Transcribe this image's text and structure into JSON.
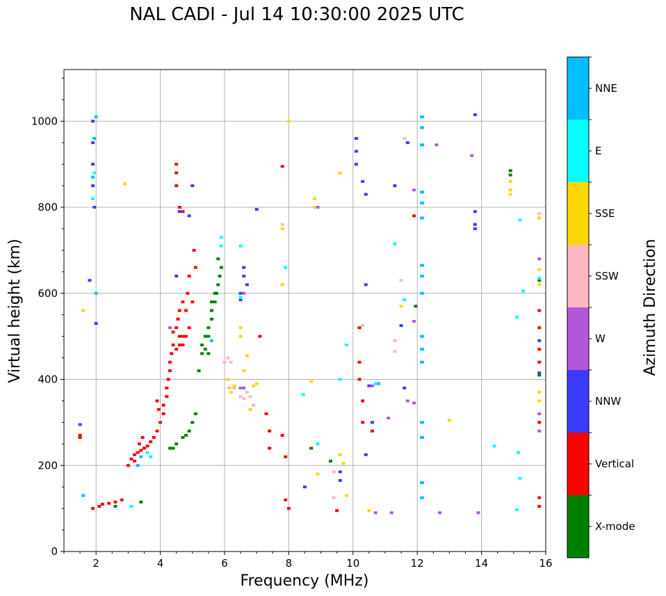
{
  "chart_data": {
    "type": "scatter",
    "title": "NAL CADI - Jul 14 10:30:00 2025 UTC",
    "xlabel": "Frequency (MHz)",
    "ylabel": "Virtual height (km)",
    "xlim": [
      1,
      16
    ],
    "ylim": [
      0,
      1120
    ],
    "xticks": [
      2,
      4,
      6,
      8,
      10,
      12,
      14,
      16
    ],
    "yticks": [
      0,
      200,
      400,
      600,
      800,
      1000
    ],
    "grid": true,
    "colorbar": {
      "label": "Azimuth Direction",
      "categories": [
        {
          "name": "X-mode",
          "color": "#008000"
        },
        {
          "name": "Vertical",
          "color": "#ff0000"
        },
        {
          "name": "NNW",
          "color": "#3b3bff"
        },
        {
          "name": "W",
          "color": "#b158d6"
        },
        {
          "name": "SSW",
          "color": "#ffb6c1"
        },
        {
          "name": "SSE",
          "color": "#ffd700"
        },
        {
          "name": "E",
          "color": "#00ffff"
        },
        {
          "name": "NNE",
          "color": "#00bfff"
        }
      ]
    },
    "series": [
      {
        "name": "Vertical",
        "points": [
          [
            1.5,
            265
          ],
          [
            1.5,
            270
          ],
          [
            1.9,
            100
          ],
          [
            2.1,
            105
          ],
          [
            2.2,
            110
          ],
          [
            2.4,
            112
          ],
          [
            2.6,
            115
          ],
          [
            2.8,
            120
          ],
          [
            3.0,
            200
          ],
          [
            3.1,
            215
          ],
          [
            3.2,
            225
          ],
          [
            3.3,
            230
          ],
          [
            3.4,
            235
          ],
          [
            3.5,
            240
          ],
          [
            3.6,
            245
          ],
          [
            3.7,
            255
          ],
          [
            3.8,
            265
          ],
          [
            3.9,
            280
          ],
          [
            4.0,
            300
          ],
          [
            4.1,
            320
          ],
          [
            4.1,
            340
          ],
          [
            4.2,
            360
          ],
          [
            4.2,
            380
          ],
          [
            4.25,
            400
          ],
          [
            4.3,
            420
          ],
          [
            4.3,
            440
          ],
          [
            4.35,
            460
          ],
          [
            4.4,
            480
          ],
          [
            4.4,
            510
          ],
          [
            4.5,
            470
          ],
          [
            4.5,
            520
          ],
          [
            4.55,
            540
          ],
          [
            4.6,
            480
          ],
          [
            4.6,
            500
          ],
          [
            4.6,
            560
          ],
          [
            4.7,
            480
          ],
          [
            4.7,
            500
          ],
          [
            4.7,
            580
          ],
          [
            4.8,
            500
          ],
          [
            4.8,
            560
          ],
          [
            4.85,
            600
          ],
          [
            4.9,
            520
          ],
          [
            4.9,
            640
          ],
          [
            5.0,
            580
          ],
          [
            5.05,
            700
          ],
          [
            5.1,
            660
          ],
          [
            4.5,
            850
          ],
          [
            4.5,
            880
          ],
          [
            4.5,
            900
          ],
          [
            4.6,
            800
          ],
          [
            4.7,
            790
          ],
          [
            3.9,
            350
          ],
          [
            3.95,
            330
          ],
          [
            3.35,
            250
          ],
          [
            3.45,
            265
          ],
          [
            3.2,
            210
          ],
          [
            7.1,
            500
          ],
          [
            7.3,
            320
          ],
          [
            7.4,
            280
          ],
          [
            7.4,
            240
          ],
          [
            7.8,
            270
          ],
          [
            7.9,
            220
          ],
          [
            7.9,
            120
          ],
          [
            8.0,
            100
          ],
          [
            9.5,
            95
          ],
          [
            10.2,
            520
          ],
          [
            10.2,
            440
          ],
          [
            10.2,
            400
          ],
          [
            10.3,
            350
          ],
          [
            10.3,
            300
          ],
          [
            10.6,
            280
          ],
          [
            15.8,
            560
          ],
          [
            15.8,
            520
          ],
          [
            15.8,
            470
          ],
          [
            15.8,
            440
          ],
          [
            15.8,
            300
          ],
          [
            15.8,
            125
          ],
          [
            15.8,
            105
          ],
          [
            7.8,
            895
          ],
          [
            11.9,
            780
          ]
        ]
      },
      {
        "name": "X-mode",
        "points": [
          [
            5.2,
            420
          ],
          [
            5.3,
            460
          ],
          [
            5.3,
            480
          ],
          [
            5.4,
            500
          ],
          [
            5.5,
            520
          ],
          [
            5.6,
            540
          ],
          [
            5.6,
            560
          ],
          [
            5.7,
            580
          ],
          [
            5.75,
            600
          ],
          [
            5.8,
            620
          ],
          [
            5.85,
            640
          ],
          [
            5.9,
            660
          ],
          [
            5.8,
            680
          ],
          [
            5.1,
            320
          ],
          [
            5.0,
            300
          ],
          [
            4.9,
            280
          ],
          [
            4.8,
            270
          ],
          [
            4.7,
            265
          ],
          [
            4.5,
            250
          ],
          [
            4.4,
            240
          ],
          [
            4.3,
            240
          ],
          [
            5.5,
            460
          ],
          [
            5.5,
            500
          ],
          [
            5.4,
            470
          ],
          [
            5.6,
            580
          ],
          [
            5.7,
            600
          ],
          [
            8.7,
            240
          ],
          [
            9.3,
            210
          ],
          [
            2.6,
            105
          ],
          [
            3.4,
            115
          ],
          [
            11.95,
            570
          ],
          [
            15.8,
            630
          ],
          [
            15.8,
            410
          ],
          [
            14.9,
            885
          ],
          [
            14.9,
            875
          ]
        ]
      },
      {
        "name": "NNW",
        "points": [
          [
            1.5,
            295
          ],
          [
            1.9,
            900
          ],
          [
            1.9,
            950
          ],
          [
            1.9,
            1000
          ],
          [
            1.9,
            850
          ],
          [
            1.95,
            800
          ],
          [
            1.8,
            630
          ],
          [
            4.5,
            640
          ],
          [
            4.6,
            790
          ],
          [
            4.9,
            780
          ],
          [
            5.0,
            850
          ],
          [
            6.5,
            600
          ],
          [
            6.5,
            585
          ],
          [
            6.7,
            620
          ],
          [
            6.6,
            640
          ],
          [
            6.6,
            660
          ],
          [
            10.1,
            960
          ],
          [
            10.1,
            930
          ],
          [
            10.1,
            900
          ],
          [
            10.3,
            860
          ],
          [
            10.4,
            830
          ],
          [
            10.4,
            620
          ],
          [
            10.5,
            385
          ],
          [
            10.6,
            300
          ],
          [
            9.6,
            185
          ],
          [
            9.6,
            165
          ],
          [
            10.4,
            225
          ],
          [
            11.6,
            380
          ],
          [
            11.5,
            525
          ],
          [
            11.7,
            950
          ],
          [
            11.3,
            850
          ],
          [
            13.8,
            1015
          ],
          [
            13.8,
            790
          ],
          [
            13.8,
            760
          ],
          [
            13.8,
            750
          ],
          [
            15.8,
            490
          ],
          [
            15.8,
            415
          ],
          [
            8.5,
            150
          ],
          [
            7.0,
            795
          ],
          [
            2.0,
            530
          ]
        ]
      },
      {
        "name": "W",
        "points": [
          [
            8.9,
            800
          ],
          [
            13.7,
            920
          ],
          [
            12.6,
            945
          ],
          [
            11.9,
            840
          ],
          [
            11.9,
            535
          ],
          [
            11.7,
            350
          ],
          [
            11.9,
            345
          ],
          [
            11.1,
            310
          ],
          [
            10.7,
            90
          ],
          [
            11.2,
            90
          ],
          [
            12.7,
            90
          ],
          [
            13.9,
            90
          ],
          [
            6.6,
            600
          ],
          [
            6.5,
            380
          ],
          [
            6.6,
            380
          ],
          [
            15.8,
            680
          ],
          [
            15.8,
            320
          ],
          [
            15.8,
            280
          ],
          [
            10.6,
            385
          ],
          [
            4.3,
            520
          ]
        ]
      },
      {
        "name": "SSW",
        "points": [
          [
            6.0,
            440
          ],
          [
            6.1,
            450
          ],
          [
            6.2,
            440
          ],
          [
            6.3,
            380
          ],
          [
            6.5,
            360
          ],
          [
            6.6,
            355
          ],
          [
            6.7,
            370
          ],
          [
            6.8,
            360
          ],
          [
            6.9,
            340
          ],
          [
            10.3,
            525
          ],
          [
            11.3,
            490
          ],
          [
            11.3,
            465
          ],
          [
            11.5,
            630
          ],
          [
            11.6,
            960
          ],
          [
            9.4,
            185
          ],
          [
            9.4,
            125
          ],
          [
            15.8,
            785
          ],
          [
            7.8,
            760
          ]
        ]
      },
      {
        "name": "SSE",
        "points": [
          [
            6.1,
            400
          ],
          [
            6.15,
            380
          ],
          [
            6.2,
            370
          ],
          [
            6.3,
            385
          ],
          [
            6.5,
            500
          ],
          [
            6.5,
            520
          ],
          [
            6.6,
            420
          ],
          [
            6.7,
            455
          ],
          [
            6.8,
            330
          ],
          [
            6.9,
            385
          ],
          [
            7.0,
            390
          ],
          [
            8.8,
            820
          ],
          [
            8.8,
            800
          ],
          [
            8.9,
            180
          ],
          [
            9.6,
            225
          ],
          [
            9.7,
            205
          ],
          [
            9.8,
            130
          ],
          [
            10.5,
            95
          ],
          [
            11.5,
            570
          ],
          [
            11.3,
            715
          ],
          [
            13.0,
            305
          ],
          [
            14.9,
            860
          ],
          [
            14.9,
            840
          ],
          [
            14.9,
            830
          ],
          [
            15.8,
            775
          ],
          [
            15.8,
            655
          ],
          [
            15.8,
            620
          ],
          [
            15.8,
            370
          ],
          [
            15.8,
            350
          ],
          [
            1.6,
            560
          ],
          [
            2.9,
            855
          ],
          [
            7.8,
            620
          ],
          [
            7.8,
            750
          ],
          [
            8.0,
            1000
          ],
          [
            9.6,
            880
          ],
          [
            8.7,
            395
          ]
        ]
      },
      {
        "name": "E",
        "points": [
          [
            1.95,
            880
          ],
          [
            1.9,
            820
          ],
          [
            3.6,
            230
          ],
          [
            3.7,
            220
          ],
          [
            5.9,
            730
          ],
          [
            5.9,
            710
          ],
          [
            6.5,
            710
          ],
          [
            6.5,
            590
          ],
          [
            8.9,
            250
          ],
          [
            9.6,
            400
          ],
          [
            9.8,
            480
          ],
          [
            11.3,
            715
          ],
          [
            11.6,
            585
          ],
          [
            14.4,
            245
          ],
          [
            15.2,
            770
          ],
          [
            15.3,
            605
          ],
          [
            15.1,
            545
          ],
          [
            15.15,
            230
          ],
          [
            15.2,
            170
          ],
          [
            15.1,
            97
          ],
          [
            8.45,
            365
          ],
          [
            7.9,
            660
          ],
          [
            3.1,
            105
          ],
          [
            15.8,
            635
          ],
          [
            10.7,
            390
          ]
        ]
      },
      {
        "name": "NNE",
        "points": [
          [
            12.15,
            1010
          ],
          [
            12.15,
            985
          ],
          [
            12.15,
            945
          ],
          [
            12.15,
            835
          ],
          [
            12.15,
            810
          ],
          [
            12.15,
            775
          ],
          [
            12.15,
            665
          ],
          [
            12.15,
            640
          ],
          [
            12.15,
            600
          ],
          [
            12.15,
            500
          ],
          [
            12.15,
            470
          ],
          [
            12.15,
            440
          ],
          [
            12.15,
            300
          ],
          [
            12.15,
            265
          ],
          [
            12.15,
            160
          ],
          [
            12.15,
            125
          ],
          [
            2.0,
            1010
          ],
          [
            1.95,
            960
          ],
          [
            1.9,
            870
          ],
          [
            2.0,
            600
          ],
          [
            3.4,
            220
          ],
          [
            3.3,
            200
          ],
          [
            5.6,
            490
          ],
          [
            1.6,
            130
          ],
          [
            10.8,
            390
          ]
        ]
      }
    ]
  }
}
